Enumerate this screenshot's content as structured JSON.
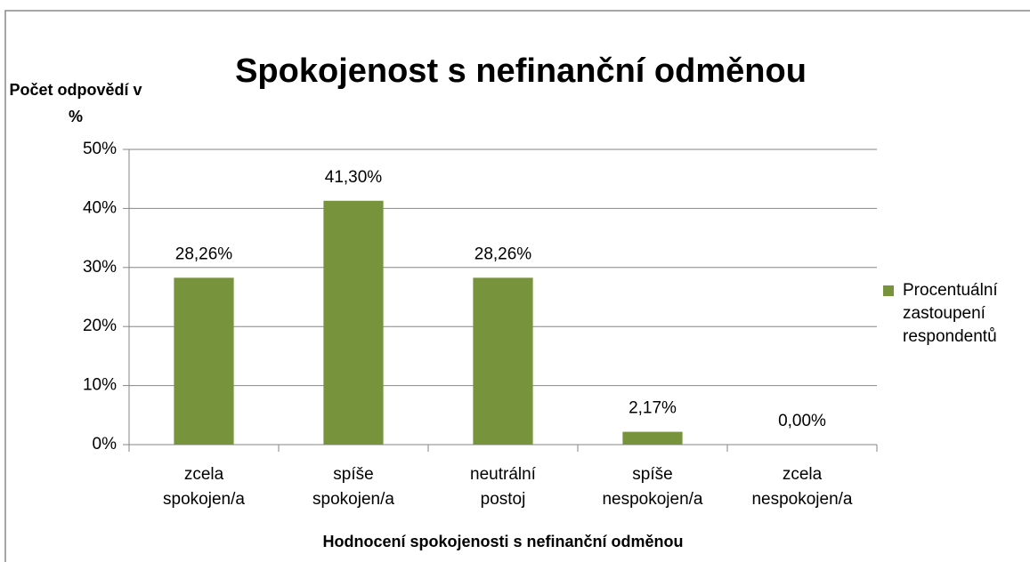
{
  "chart_data": {
    "type": "bar",
    "title": "Spokojenost s nefinanční odměnou",
    "y_label": "Počet odpovědí v %",
    "x_label": "Hodnocení spokojenosti s nefinanční odměnou",
    "categories": [
      "zcela spokojen/a",
      "spíše spokojen/a",
      "neutrální postoj",
      "spíše nespokojen/a",
      "zcela nespokojen/a"
    ],
    "series": [
      {
        "name": "Procentuální zastoupení respondentů",
        "color": "#77933c",
        "values": [
          28.26,
          41.3,
          28.26,
          2.17,
          0.0
        ],
        "value_labels": [
          "28,26%",
          "41,30%",
          "28,26%",
          "2,17%",
          "0,00%"
        ]
      }
    ],
    "ylim": [
      0,
      50
    ],
    "yticks": [
      {
        "value": 0,
        "label": "0%"
      },
      {
        "value": 10,
        "label": "10%"
      },
      {
        "value": 20,
        "label": "20%"
      },
      {
        "value": 30,
        "label": "30%"
      },
      {
        "value": 40,
        "label": "40%"
      },
      {
        "value": 50,
        "label": "50%"
      }
    ],
    "grid": true,
    "legend": "right"
  }
}
